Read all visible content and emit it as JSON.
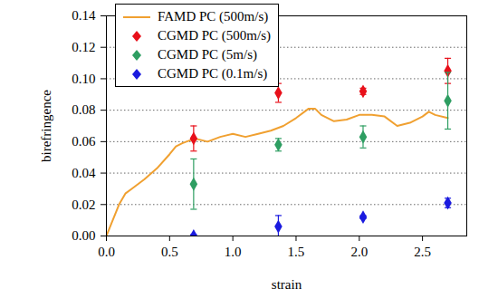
{
  "chart_data": {
    "type": "line",
    "xlabel": "strain",
    "ylabel": "birefringence",
    "xlim": [
      0,
      2.85
    ],
    "ylim": [
      0,
      0.14
    ],
    "xticks": [
      {
        "value": 0,
        "label": "0.0"
      },
      {
        "value": 0.5,
        "label": "0.5"
      },
      {
        "value": 1,
        "label": "1.0"
      },
      {
        "value": 1.5,
        "label": "1.5"
      },
      {
        "value": 2,
        "label": "2.0"
      },
      {
        "value": 2.5,
        "label": "2.5"
      }
    ],
    "yticks": [
      {
        "value": 0,
        "label": "0.00"
      },
      {
        "value": 0.02,
        "label": "0.02"
      },
      {
        "value": 0.04,
        "label": "0.04"
      },
      {
        "value": 0.06,
        "label": "0.06"
      },
      {
        "value": 0.08,
        "label": "0.08"
      },
      {
        "value": 0.1,
        "label": "0.10"
      },
      {
        "value": 0.12,
        "label": "0.12"
      },
      {
        "value": 0.14,
        "label": "0.14"
      }
    ],
    "grid": true,
    "legend": "upper left",
    "series": [
      {
        "name": "FAMD PC (500m/s)",
        "type": "line",
        "line_style": "solid",
        "color": "#f0a030",
        "x": [
          0,
          0.05,
          0.1,
          0.15,
          0.2,
          0.3,
          0.4,
          0.5,
          0.55,
          0.6,
          0.7,
          0.8,
          0.9,
          1.0,
          1.1,
          1.2,
          1.3,
          1.4,
          1.5,
          1.6,
          1.65,
          1.7,
          1.8,
          1.9,
          2.0,
          2.1,
          2.2,
          2.3,
          2.4,
          2.5,
          2.55,
          2.6,
          2.7
        ],
        "values": [
          0,
          0.01,
          0.02,
          0.027,
          0.03,
          0.036,
          0.043,
          0.052,
          0.057,
          0.059,
          0.062,
          0.06,
          0.063,
          0.065,
          0.063,
          0.065,
          0.067,
          0.07,
          0.075,
          0.081,
          0.081,
          0.077,
          0.073,
          0.074,
          0.077,
          0.077,
          0.076,
          0.07,
          0.072,
          0.076,
          0.079,
          0.077,
          0.075
        ]
      },
      {
        "name": "CGMD PC (500m/s)",
        "type": "scatter",
        "marker": "diamond",
        "color": "#e8101a",
        "x": [
          0.69,
          1.36,
          2.03,
          2.7
        ],
        "values": [
          0.062,
          0.091,
          0.092,
          0.105
        ],
        "errors": [
          0.008,
          0.006,
          0.002,
          0.008
        ]
      },
      {
        "name": "CGMD PC (5m/s)",
        "type": "scatter",
        "marker": "diamond",
        "color": "#2e9e62",
        "x": [
          0.69,
          1.36,
          2.03,
          2.7
        ],
        "values": [
          0.033,
          0.058,
          0.063,
          0.086
        ],
        "errors": [
          0.016,
          0.004,
          0.007,
          0.018
        ]
      },
      {
        "name": "CGMD PC (0.1m/s)",
        "type": "scatter",
        "marker": "diamond",
        "color": "#1a1adf",
        "x": [
          0.69,
          1.36,
          2.03,
          2.7
        ],
        "values": [
          0,
          0.006,
          0.012,
          0.021
        ],
        "errors": [
          0.001,
          0.007,
          0.001,
          0.003
        ]
      }
    ]
  }
}
